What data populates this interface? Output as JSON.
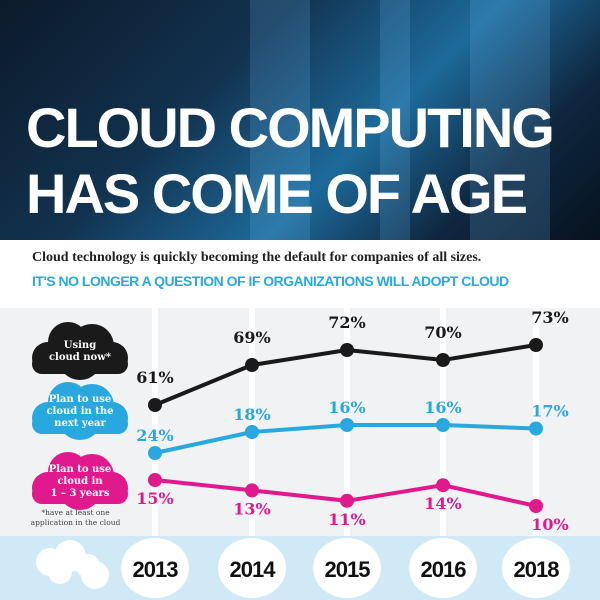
{
  "header": {
    "title_line1": "CLOUD COMPUTING",
    "title_line2": "HAS COME OF AGE"
  },
  "intro": {
    "text": "Cloud technology is quickly becoming the default for companies of all sizes.",
    "headline": "IT'S NO LONGER A QUESTION OF IF ORGANIZATIONS WILL ADOPT CLOUD"
  },
  "footnote": "*have at least one application in the cloud",
  "chart_data": {
    "type": "line",
    "categories": [
      "2013",
      "2014",
      "2015",
      "2016",
      "2018"
    ],
    "series": [
      {
        "name": "Using cloud now*",
        "label_lines": [
          "Using",
          "cloud now*"
        ],
        "color": "#1a1a1a",
        "values": [
          61,
          69,
          72,
          70,
          73
        ]
      },
      {
        "name": "Plan to use cloud in the next year",
        "label_lines": [
          "Plan to use",
          "cloud in the",
          "next year"
        ],
        "color": "#29a8e0",
        "values": [
          24,
          18,
          16,
          16,
          17
        ]
      },
      {
        "name": "Plan to use cloud in 1 – 3 years",
        "label_lines": [
          "Plan to use",
          "cloud in",
          "1 – 3 years"
        ],
        "color": "#e0198c",
        "values": [
          15,
          13,
          11,
          14,
          10
        ]
      }
    ],
    "unit": "%",
    "legend": "left",
    "grid": false
  }
}
